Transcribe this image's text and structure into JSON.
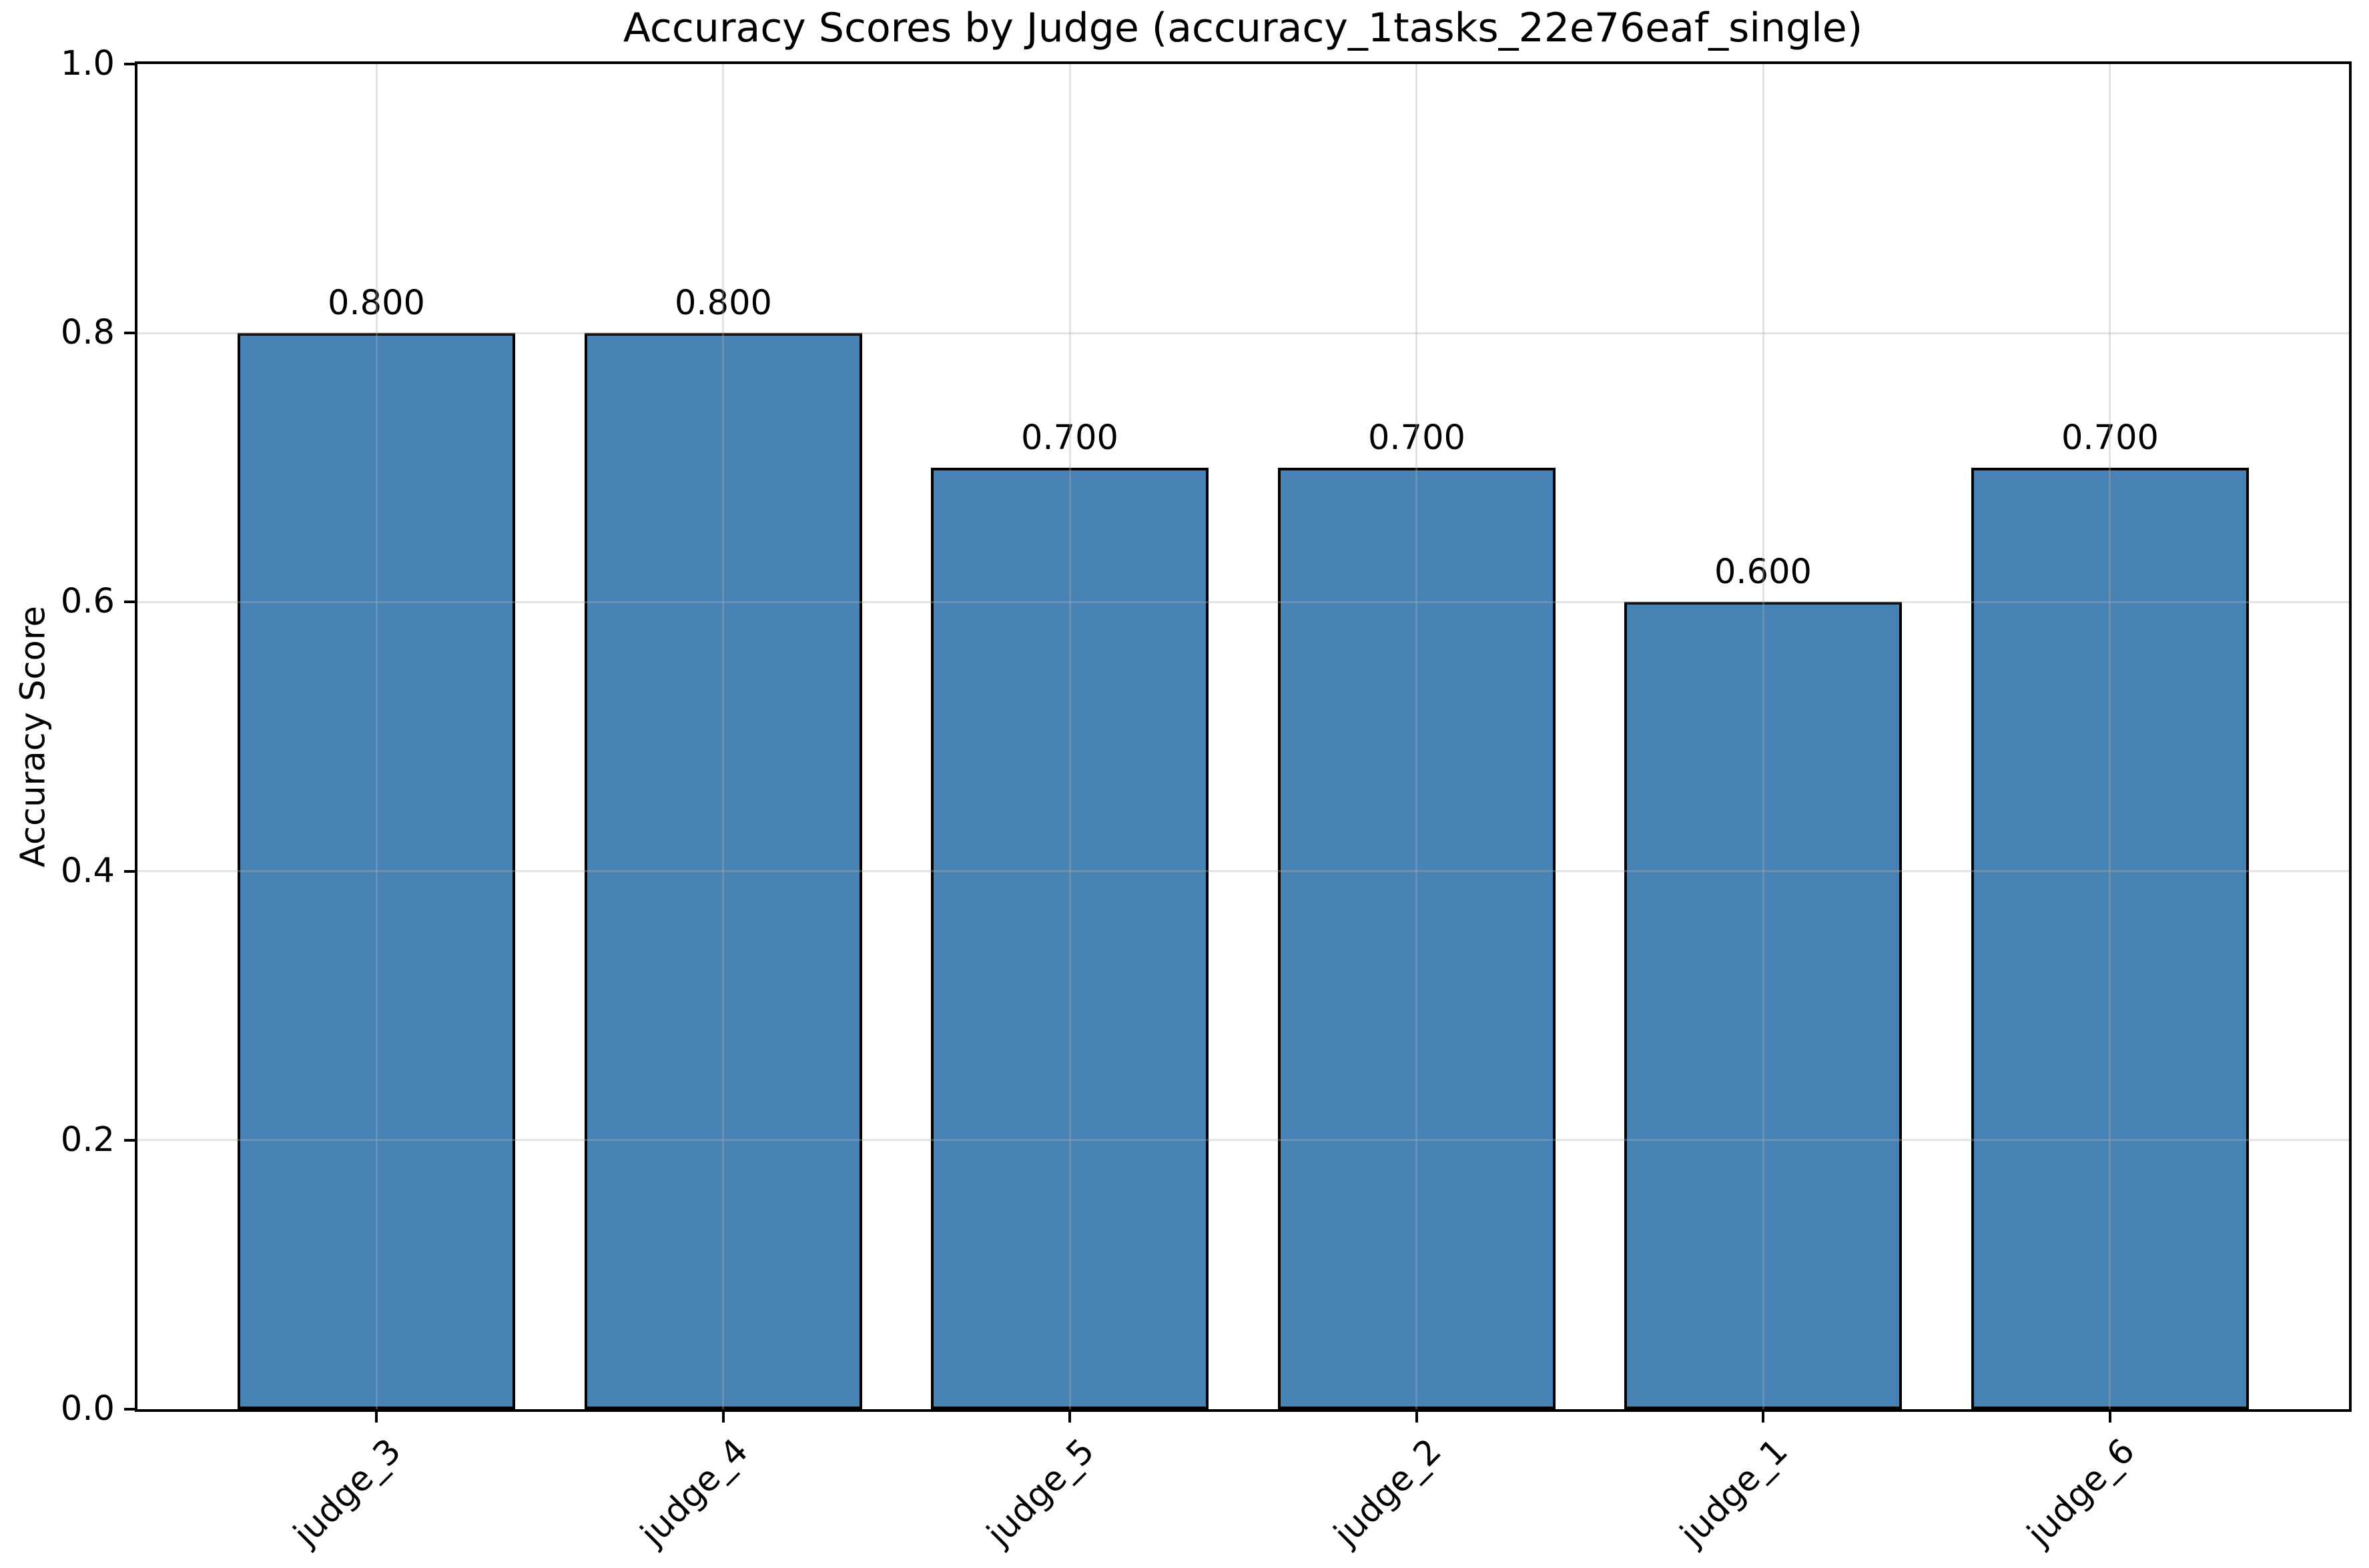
{
  "figure": {
    "background_color": "#ffffff"
  },
  "chart_data": {
    "type": "bar",
    "title": "Accuracy Scores by Judge (accuracy_1tasks_22e76eaf_single)",
    "xlabel": "",
    "ylabel": "Accuracy Score",
    "categories": [
      "judge_3",
      "judge_4",
      "judge_5",
      "judge_2",
      "judge_1",
      "judge_6"
    ],
    "values": [
      0.8,
      0.8,
      0.7,
      0.7,
      0.6,
      0.7
    ],
    "bar_value_labels": [
      "0.800",
      "0.800",
      "0.700",
      "0.700",
      "0.600",
      "0.700"
    ],
    "ylim": [
      0.0,
      1.0
    ],
    "ytick_values": [
      0.0,
      0.2,
      0.4,
      0.6,
      0.8,
      1.0
    ],
    "ytick_labels": [
      "0.0",
      "0.2",
      "0.4",
      "0.6",
      "0.8",
      "1.0"
    ],
    "x_tick_rotation_deg": 45,
    "grid": true,
    "grid_over_bars": true,
    "legend": false,
    "bar_color": "#4682B4",
    "bar_edge_color": "#000000",
    "grid_color_rgba": "rgba(176,176,176,0.35)",
    "spine_color": "#000000",
    "text_color": "#000000"
  }
}
